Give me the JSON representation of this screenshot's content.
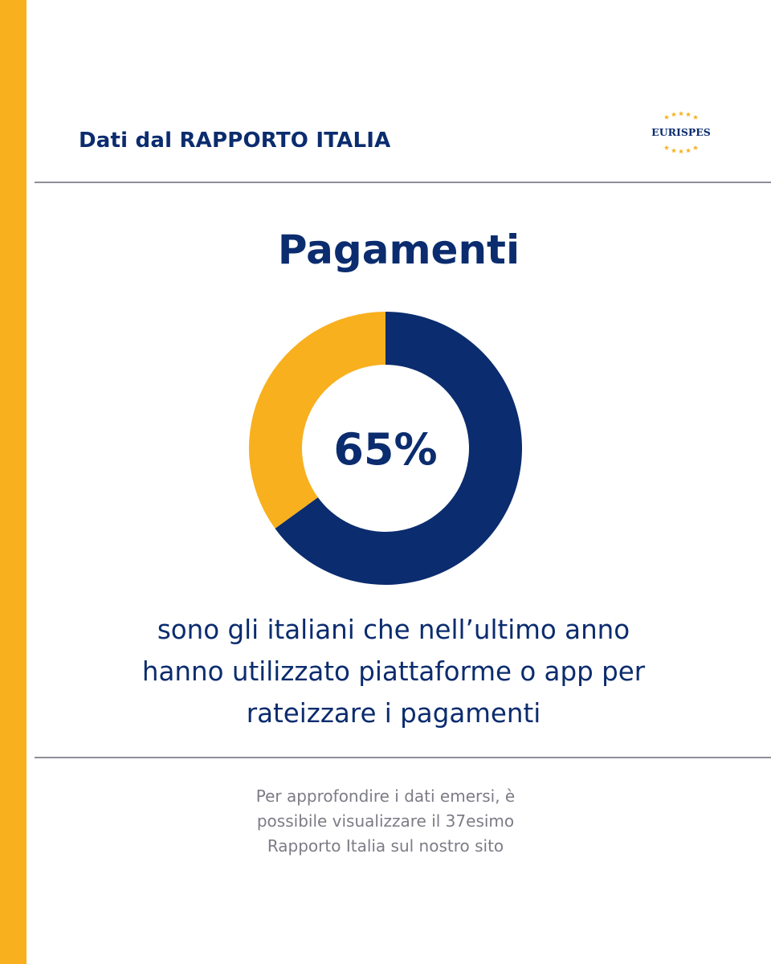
{
  "header": {
    "title": "Dati dal RAPPORTO ITALIA",
    "logo_text": "EURISPES"
  },
  "main": {
    "title": "Pagamenti",
    "description_lines": [
      "sono gli italiani che nell’ultimo anno",
      "hanno utilizzato piattaforme o app per",
      "rateizzare i pagamenti"
    ]
  },
  "footer": {
    "note_lines": [
      "Per approfondire i dati emersi, è",
      "possibile visualizzare il 37esimo",
      "Rapporto Italia sul nostro sito"
    ]
  },
  "chart_data": {
    "type": "pie",
    "center_label": "65%",
    "slices": [
      {
        "value": 65,
        "color": "#0B2C6E"
      },
      {
        "value": 35,
        "color": "#F8B01E"
      }
    ]
  },
  "colors": {
    "accent": "#F8B01E",
    "primary": "#0B2C6E",
    "divider": "#8E8E9A",
    "muted_text": "#7C7C86"
  }
}
